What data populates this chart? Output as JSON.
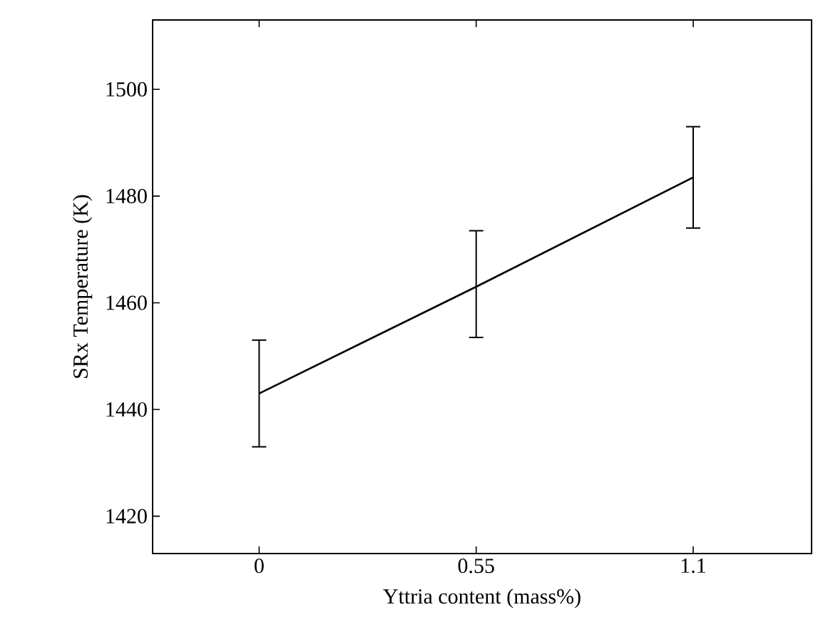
{
  "chart_data": {
    "type": "line",
    "xlabel": "Yttria content (mass%)",
    "ylabel": "SRx Temperature (K)",
    "x": [
      0,
      0.55,
      1.1
    ],
    "series": [
      {
        "color": "#000000",
        "values": [
          1443,
          1463,
          1483.5
        ],
        "errors": [
          [
            1433,
            1453
          ],
          [
            1453.5,
            1473.5
          ],
          [
            1474,
            1493
          ]
        ]
      }
    ],
    "xlim": [
      -0.27,
      1.4
    ],
    "ylim": [
      1413,
      1513
    ],
    "xticks": [
      0,
      {
        "value": 0.55,
        "label": "0.55"
      },
      {
        "value": 1.1,
        "label": "1.1"
      }
    ],
    "yticks": [
      1420,
      1440,
      1460,
      1480,
      1500
    ],
    "grid": false,
    "marker": "none",
    "line_style": "solid"
  }
}
